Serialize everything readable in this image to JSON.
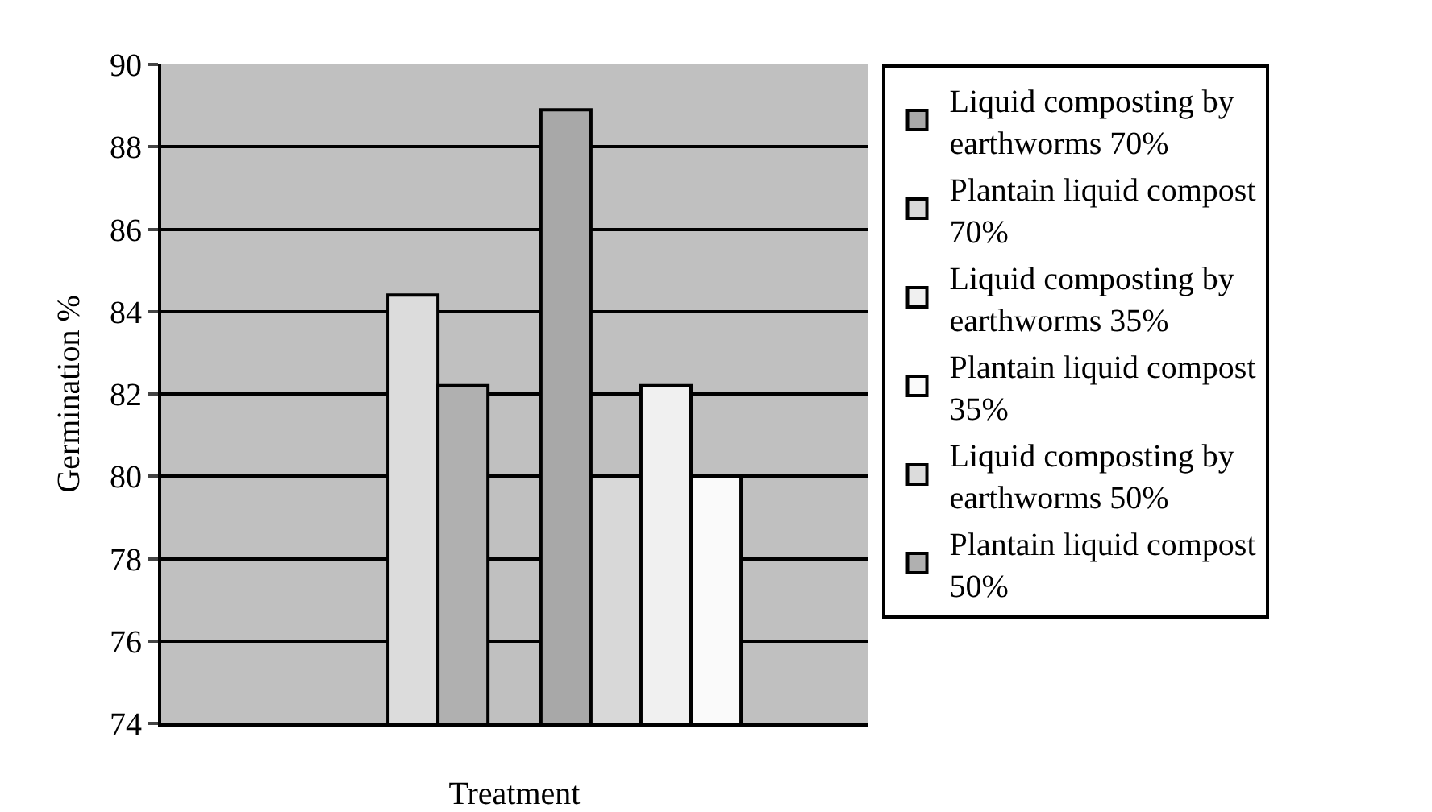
{
  "chart_data": {
    "type": "bar",
    "xlabel": "Treatment",
    "ylabel": "Germination %",
    "categories": [
      null,
      null
    ],
    "series": [
      {
        "name": "Liquid composting by earthworms 70%",
        "color": "#a8a8a8",
        "values": [
          null,
          88.9
        ]
      },
      {
        "name": "Plantain liquid compost 70%",
        "color": "#d8d8d8",
        "values": [
          null,
          80.0
        ]
      },
      {
        "name": "Liquid composting by earthworms 35%",
        "color": "#f0f0f0",
        "values": [
          null,
          82.2
        ]
      },
      {
        "name": "Plantain liquid compost 35%",
        "color": "#fafafa",
        "values": [
          null,
          80.0
        ]
      },
      {
        "name": "Liquid composting by earthworms 50%",
        "color": "#dcdcdc",
        "values": [
          84.4,
          null
        ]
      },
      {
        "name": "Plantain liquid compost 50%",
        "color": "#b0b0b0",
        "values": [
          82.2,
          null
        ]
      }
    ],
    "ylim": [
      74,
      90
    ],
    "yticks": [
      74,
      76,
      78,
      80,
      82,
      84,
      86,
      88,
      90
    ],
    "grid": "y",
    "legend": "right"
  }
}
